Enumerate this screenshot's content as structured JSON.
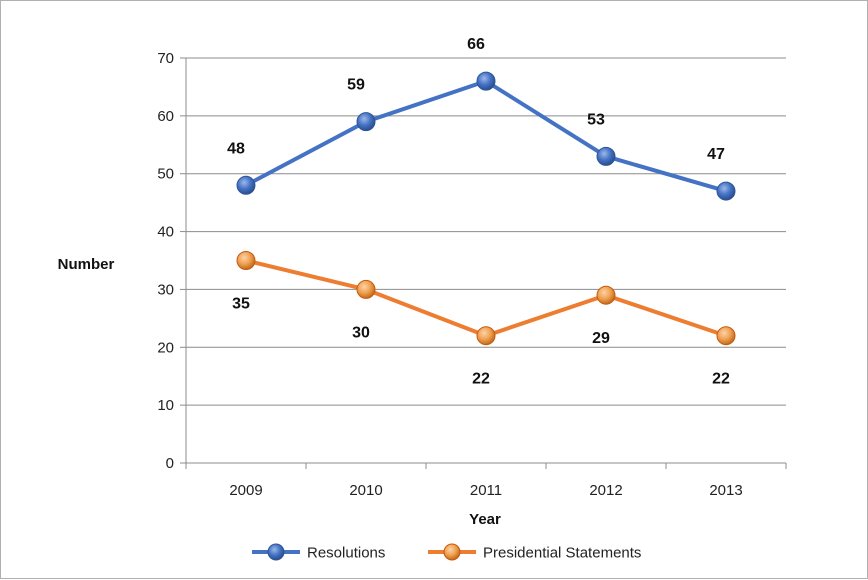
{
  "chart_data": {
    "type": "line",
    "xlabel": "Year",
    "ylabel": "Number",
    "categories": [
      "2009",
      "2010",
      "2011",
      "2012",
      "2013"
    ],
    "ylim": [
      0,
      70
    ],
    "yticks": [
      "0",
      "10",
      "20",
      "30",
      "40",
      "50",
      "60",
      "70"
    ],
    "grid": true,
    "legend_position": "bottom",
    "series": [
      {
        "name": "Resolutions",
        "values": [
          48,
          59,
          66,
          53,
          47
        ],
        "labels": [
          "48",
          "59",
          "66",
          "53",
          "47"
        ],
        "label_position": "above",
        "color": "#4472C4"
      },
      {
        "name": "Presidential Statements",
        "values": [
          35,
          30,
          22,
          29,
          22
        ],
        "labels": [
          "35",
          "30",
          "22",
          "29",
          "22"
        ],
        "label_position": "below",
        "color": "#ED7D31"
      }
    ]
  }
}
